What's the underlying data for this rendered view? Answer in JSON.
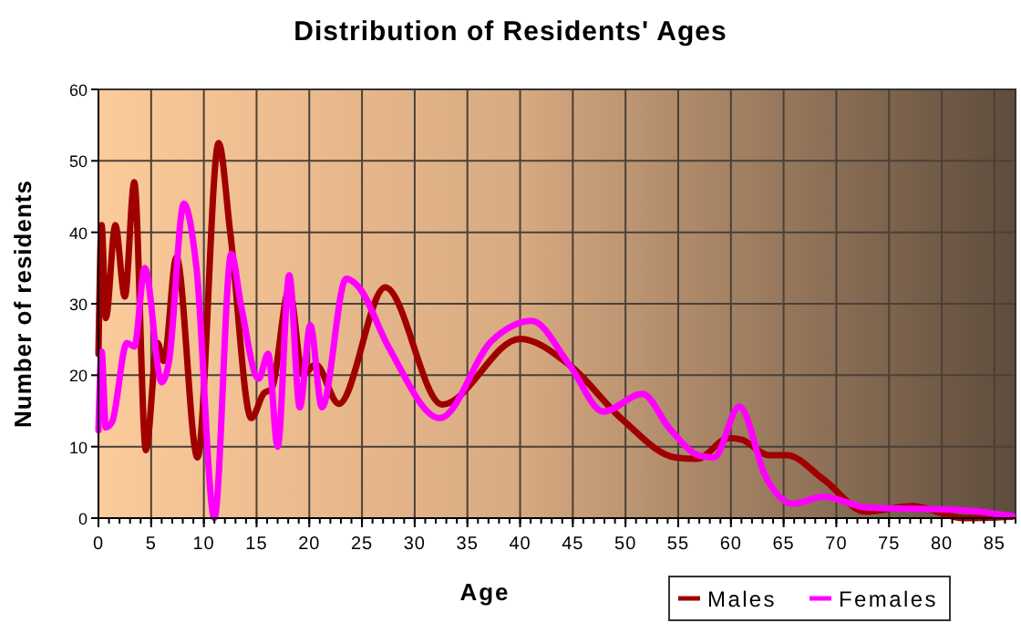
{
  "chart_data": {
    "type": "line",
    "title": "Distribution of Residents' Ages",
    "xlabel": "Age",
    "ylabel": "Number of residents",
    "xlim": [
      0,
      87
    ],
    "xticks": [
      0,
      5,
      10,
      15,
      20,
      25,
      30,
      35,
      40,
      45,
      50,
      55,
      60,
      65,
      70,
      75,
      80,
      85
    ],
    "ylim": [
      0,
      60
    ],
    "yticks": [
      0,
      10,
      20,
      30,
      40,
      50,
      60
    ],
    "grid": true,
    "legend": "bottom right",
    "marker": "none",
    "line_style": "solid",
    "series": [
      {
        "name": "Males",
        "color": "#a00000",
        "x": [
          0,
          0.3,
          0.7,
          1.6,
          2.5,
          3.4,
          4.5,
          5.6,
          6.2,
          7.4,
          9.4,
          11.4,
          12.5,
          14.5,
          15.7,
          16.4,
          18.1,
          19.4,
          20.6,
          22.8,
          27.2,
          32.6,
          40,
          44.7,
          49.7,
          54.7,
          56.8,
          59.8,
          61,
          63.6,
          65.3,
          68.8,
          72.8,
          77.2,
          82.1,
          86.7
        ],
        "values": [
          23,
          41,
          28,
          41,
          31,
          47,
          9.5,
          24.5,
          22,
          36.5,
          8.5,
          52.5,
          40,
          14,
          17.5,
          18,
          32,
          20,
          21.5,
          16,
          32.3,
          15.9,
          25.1,
          21.4,
          13.8,
          8.5,
          8.3,
          11.2,
          11,
          8.8,
          8.8,
          5.4,
          0.9,
          1.7,
          0,
          0.2
        ]
      },
      {
        "name": "Females",
        "color": "#ff00ff",
        "x": [
          0,
          0.3,
          0.7,
          1.3,
          2.7,
          3.4,
          4.4,
          6,
          6.7,
          8.1,
          9.3,
          11,
          12.6,
          13.5,
          15.2,
          16.1,
          17,
          18.1,
          19.1,
          20.1,
          21.2,
          23.5,
          24.6,
          27.5,
          32.4,
          37.3,
          41.1,
          44.7,
          47.9,
          51.6,
          54.2,
          57.1,
          58.4,
          60.8,
          63.3,
          65.9,
          68.8,
          72.8,
          82.1,
          86.7
        ],
        "values": [
          12.3,
          23.3,
          12.7,
          13.5,
          24.5,
          24,
          35,
          19,
          22,
          44,
          35,
          0,
          37,
          30,
          19.5,
          23,
          10,
          34,
          15.5,
          27,
          15.5,
          33.5,
          32.5,
          24,
          14,
          24.8,
          27.6,
          21.4,
          14.9,
          17.4,
          12.5,
          8.7,
          8.5,
          15.6,
          5.8,
          2,
          3,
          1.5,
          1.1,
          0.3
        ]
      }
    ]
  }
}
